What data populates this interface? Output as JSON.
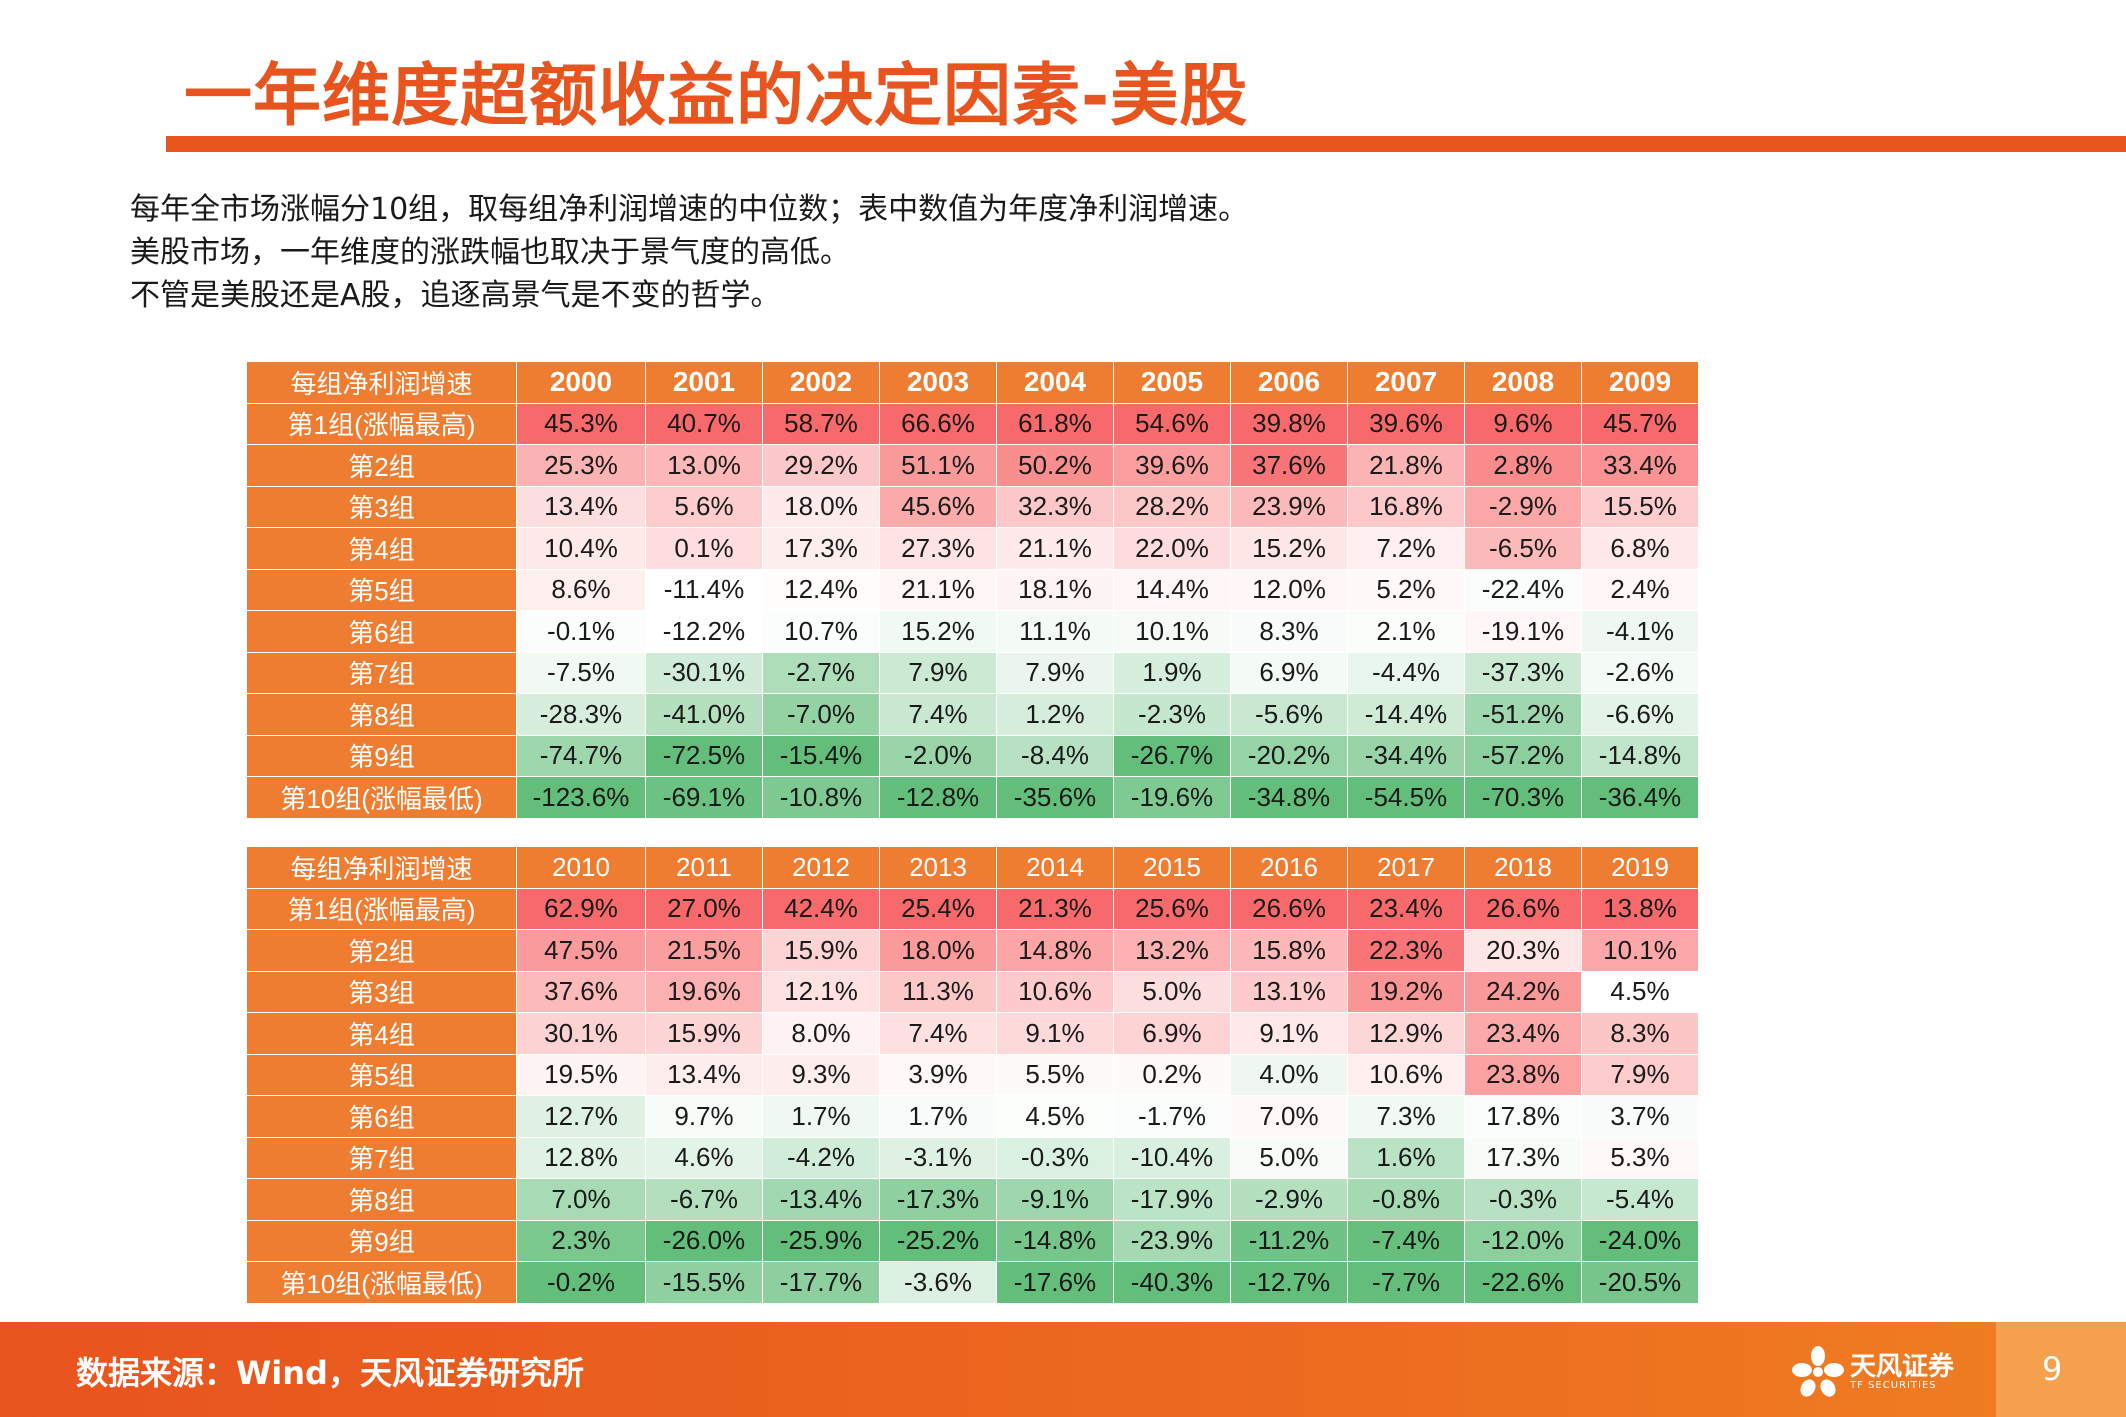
{
  "title": "一年维度超额收益的决定因素-美股",
  "intro": [
    "每年全市场涨幅分10组，取每组净利润增速的中位数；表中数值为年度净利润增速。",
    "美股市场，一年维度的涨跌幅也取决于景气度的高低。",
    "不管是美股还是A股，追逐高景气是不变的哲学。"
  ],
  "colors": {
    "accent": "#e8541e",
    "header": "#ef7d31",
    "positive": "#f8696b",
    "negative": "#63be7b",
    "neutral": "#ffffff"
  },
  "table1": {
    "corner": "每组净利润增速",
    "years": [
      "2000",
      "2001",
      "2002",
      "2003",
      "2004",
      "2005",
      "2006",
      "2007",
      "2008",
      "2009"
    ],
    "rows": [
      {
        "label": "第1组(涨幅最高)",
        "values": [
          "45.3%",
          "40.7%",
          "58.7%",
          "66.6%",
          "61.8%",
          "54.6%",
          "39.8%",
          "39.6%",
          "9.6%",
          "45.7%"
        ]
      },
      {
        "label": "第2组",
        "values": [
          "25.3%",
          "13.0%",
          "29.2%",
          "51.1%",
          "50.2%",
          "39.6%",
          "37.6%",
          "21.8%",
          "2.8%",
          "33.4%"
        ]
      },
      {
        "label": "第3组",
        "values": [
          "13.4%",
          "5.6%",
          "18.0%",
          "45.6%",
          "32.3%",
          "28.2%",
          "23.9%",
          "16.8%",
          "-2.9%",
          "15.5%"
        ]
      },
      {
        "label": "第4组",
        "values": [
          "10.4%",
          "0.1%",
          "17.3%",
          "27.3%",
          "21.1%",
          "22.0%",
          "15.2%",
          "7.2%",
          "-6.5%",
          "6.8%"
        ]
      },
      {
        "label": "第5组",
        "values": [
          "8.6%",
          "-11.4%",
          "12.4%",
          "21.1%",
          "18.1%",
          "14.4%",
          "12.0%",
          "5.2%",
          "-22.4%",
          "2.4%"
        ]
      },
      {
        "label": "第6组",
        "values": [
          "-0.1%",
          "-12.2%",
          "10.7%",
          "15.2%",
          "11.1%",
          "10.1%",
          "8.3%",
          "2.1%",
          "-19.1%",
          "-4.1%"
        ]
      },
      {
        "label": "第7组",
        "values": [
          "-7.5%",
          "-30.1%",
          "-2.7%",
          "7.9%",
          "7.9%",
          "1.9%",
          "6.9%",
          "-4.4%",
          "-37.3%",
          "-2.6%"
        ]
      },
      {
        "label": "第8组",
        "values": [
          "-28.3%",
          "-41.0%",
          "-7.0%",
          "7.4%",
          "1.2%",
          "-2.3%",
          "-5.6%",
          "-14.4%",
          "-51.2%",
          "-6.6%"
        ]
      },
      {
        "label": "第9组",
        "values": [
          "-74.7%",
          "-72.5%",
          "-15.4%",
          "-2.0%",
          "-8.4%",
          "-26.7%",
          "-20.2%",
          "-34.4%",
          "-57.2%",
          "-14.8%"
        ]
      },
      {
        "label": "第10组(涨幅最低)",
        "values": [
          "-123.6%",
          "-69.1%",
          "-10.8%",
          "-12.8%",
          "-35.6%",
          "-19.6%",
          "-34.8%",
          "-54.5%",
          "-70.3%",
          "-36.4%"
        ]
      }
    ]
  },
  "table2": {
    "corner": "每组净利润增速",
    "years": [
      "2010",
      "2011",
      "2012",
      "2013",
      "2014",
      "2015",
      "2016",
      "2017",
      "2018",
      "2019"
    ],
    "rows": [
      {
        "label": "第1组(涨幅最高)",
        "values": [
          "62.9%",
          "27.0%",
          "42.4%",
          "25.4%",
          "21.3%",
          "25.6%",
          "26.6%",
          "23.4%",
          "26.6%",
          "13.8%"
        ]
      },
      {
        "label": "第2组",
        "values": [
          "47.5%",
          "21.5%",
          "15.9%",
          "18.0%",
          "14.8%",
          "13.2%",
          "15.8%",
          "22.3%",
          "20.3%",
          "10.1%"
        ]
      },
      {
        "label": "第3组",
        "values": [
          "37.6%",
          "19.6%",
          "12.1%",
          "11.3%",
          "10.6%",
          "5.0%",
          "13.1%",
          "19.2%",
          "24.2%",
          "4.5%"
        ]
      },
      {
        "label": "第4组",
        "values": [
          "30.1%",
          "15.9%",
          "8.0%",
          "7.4%",
          "9.1%",
          "6.9%",
          "9.1%",
          "12.9%",
          "23.4%",
          "8.3%"
        ]
      },
      {
        "label": "第5组",
        "values": [
          "19.5%",
          "13.4%",
          "9.3%",
          "3.9%",
          "5.5%",
          "0.2%",
          "4.0%",
          "10.6%",
          "23.8%",
          "7.9%"
        ]
      },
      {
        "label": "第6组",
        "values": [
          "12.7%",
          "9.7%",
          "1.7%",
          "1.7%",
          "4.5%",
          "-1.7%",
          "7.0%",
          "7.3%",
          "17.8%",
          "3.7%"
        ]
      },
      {
        "label": "第7组",
        "values": [
          "12.8%",
          "4.6%",
          "-4.2%",
          "-3.1%",
          "-0.3%",
          "-10.4%",
          "5.0%",
          "1.6%",
          "17.3%",
          "5.3%"
        ]
      },
      {
        "label": "第8组",
        "values": [
          "7.0%",
          "-6.7%",
          "-13.4%",
          "-17.3%",
          "-9.1%",
          "-17.9%",
          "-2.9%",
          "-0.8%",
          "-0.3%",
          "-5.4%"
        ]
      },
      {
        "label": "第9组",
        "values": [
          "2.3%",
          "-26.0%",
          "-25.9%",
          "-25.2%",
          "-14.8%",
          "-23.9%",
          "-11.2%",
          "-7.4%",
          "-12.0%",
          "-24.0%"
        ]
      },
      {
        "label": "第10组(涨幅最低)",
        "values": [
          "-0.2%",
          "-15.5%",
          "-17.7%",
          "-3.6%",
          "-17.6%",
          "-40.3%",
          "-12.7%",
          "-7.7%",
          "-22.6%",
          "-20.5%"
        ]
      }
    ]
  },
  "footer": {
    "source": "数据来源：Wind，天风证券研究所",
    "brand": "天风证券",
    "brand_en": "TF SECURITIES",
    "page_number": "9"
  }
}
